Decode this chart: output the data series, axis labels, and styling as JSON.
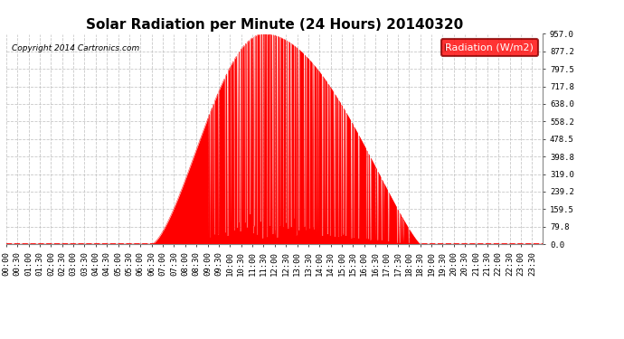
{
  "title": "Solar Radiation per Minute (24 Hours) 20140320",
  "copyright_text": "Copyright 2014 Cartronics.com",
  "legend_label": "Radiation (W/m2)",
  "legend_color": "#FF0000",
  "fill_color": "#FF0000",
  "line_color": "#FF0000",
  "dashed_line_color": "#FF0000",
  "grid_color": "#BBBBBB",
  "background_color": "#FFFFFF",
  "plot_bg_color": "#FFFFFF",
  "ylim": [
    0.0,
    957.0
  ],
  "yticks": [
    0.0,
    79.8,
    159.5,
    239.2,
    319.0,
    398.8,
    478.5,
    558.2,
    638.0,
    717.8,
    797.5,
    877.2,
    957.0
  ],
  "xtick_interval_minutes": 30,
  "total_minutes": 1440,
  "sunrise_minute": 390,
  "sunset_minute": 1110,
  "peak_minute": 690,
  "peak_value": 957.0,
  "title_fontsize": 11,
  "tick_fontsize": 6.5,
  "legend_fontsize": 8
}
